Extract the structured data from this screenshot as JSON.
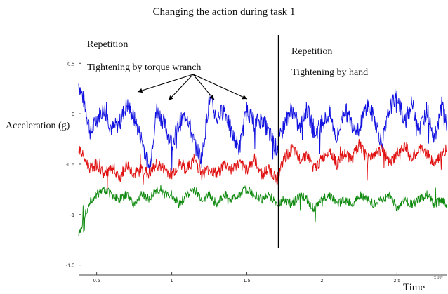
{
  "figure": {
    "title": "Changing the action during task 1",
    "ylabel": "Acceleration (g)",
    "xlabel": "Time",
    "x_exponent": "x 10⁴"
  },
  "annotations": {
    "left_repetition": "Repetition",
    "left_action": "Tightening by torque wranch",
    "right_repetition": "Repetition",
    "right_action": "Tightening by hand"
  },
  "chart_data": {
    "type": "line",
    "title": "Changing the action during task 1",
    "xlabel": "Time",
    "ylabel": "Acceleration (g)",
    "x_scale_note": "x 10^4",
    "xlim": [
      0.38,
      2.83
    ],
    "ylim": [
      -1.6,
      0.85
    ],
    "x_ticks": [
      0.5,
      1,
      1.5,
      2,
      2.5
    ],
    "x_tick_labels": [
      "0.5",
      "1",
      "1.5",
      "2",
      "2.5"
    ],
    "y_ticks": [
      -1.5,
      -1,
      -0.5,
      0,
      0.5
    ],
    "y_tick_labels": [
      "-1.5",
      "-1",
      "-0.5",
      "0",
      "0.5"
    ],
    "change_marker_x": 1.71,
    "colors": {
      "blue": "#1010e0",
      "red": "#e01010",
      "green": "#0f8a0f"
    },
    "series": [
      {
        "color": "blue",
        "x": [
          0.38,
          0.42,
          0.46,
          0.5,
          0.55,
          0.6,
          0.65,
          0.7,
          0.75,
          0.8,
          0.85,
          0.9,
          0.95,
          1.0,
          1.05,
          1.1,
          1.15,
          1.2,
          1.25,
          1.3,
          1.35,
          1.4,
          1.45,
          1.5,
          1.55,
          1.6,
          1.65,
          1.7,
          1.75,
          1.8,
          1.85,
          1.9,
          1.95,
          2.0,
          2.05,
          2.1,
          2.15,
          2.2,
          2.25,
          2.3,
          2.35,
          2.4,
          2.45,
          2.5,
          2.55,
          2.6,
          2.65,
          2.7,
          2.75,
          2.8,
          2.83
        ],
        "values": [
          0.3,
          0.1,
          -0.2,
          -0.05,
          0.05,
          -0.15,
          -0.1,
          0.1,
          -0.05,
          -0.25,
          -0.55,
          0.05,
          -0.1,
          -0.3,
          -0.1,
          0.0,
          -0.3,
          -0.45,
          0.15,
          -0.05,
          0.05,
          -0.2,
          -0.35,
          0.05,
          -0.1,
          -0.05,
          -0.2,
          -0.35,
          -0.1,
          0.05,
          -0.15,
          0.05,
          -0.2,
          -0.1,
          0.0,
          -0.25,
          0.05,
          -0.1,
          -0.15,
          0.1,
          -0.05,
          -0.3,
          0.05,
          0.2,
          -0.1,
          0.1,
          -0.15,
          0.05,
          -0.25,
          0.1,
          -0.1
        ]
      },
      {
        "color": "red",
        "x": [
          0.38,
          0.42,
          0.46,
          0.5,
          0.55,
          0.6,
          0.65,
          0.7,
          0.75,
          0.8,
          0.85,
          0.9,
          0.95,
          1.0,
          1.05,
          1.1,
          1.15,
          1.2,
          1.25,
          1.3,
          1.35,
          1.4,
          1.45,
          1.5,
          1.55,
          1.6,
          1.65,
          1.7,
          1.75,
          1.8,
          1.85,
          1.9,
          1.95,
          2.0,
          2.05,
          2.1,
          2.15,
          2.2,
          2.25,
          2.3,
          2.35,
          2.4,
          2.45,
          2.5,
          2.55,
          2.6,
          2.65,
          2.7,
          2.75,
          2.8,
          2.83
        ],
        "values": [
          -0.35,
          -0.45,
          -0.55,
          -0.5,
          -0.6,
          -0.55,
          -0.65,
          -0.5,
          -0.6,
          -0.55,
          -0.6,
          -0.5,
          -0.55,
          -0.6,
          -0.5,
          -0.55,
          -0.45,
          -0.6,
          -0.55,
          -0.6,
          -0.5,
          -0.55,
          -0.5,
          -0.55,
          -0.45,
          -0.6,
          -0.55,
          -0.65,
          -0.45,
          -0.35,
          -0.45,
          -0.4,
          -0.55,
          -0.45,
          -0.35,
          -0.5,
          -0.4,
          -0.45,
          -0.3,
          -0.45,
          -0.4,
          -0.35,
          -0.5,
          -0.4,
          -0.3,
          -0.45,
          -0.35,
          -0.4,
          -0.5,
          -0.4,
          -0.35
        ]
      },
      {
        "color": "green",
        "x": [
          0.38,
          0.42,
          0.46,
          0.5,
          0.55,
          0.6,
          0.65,
          0.7,
          0.75,
          0.8,
          0.85,
          0.9,
          0.95,
          1.0,
          1.05,
          1.1,
          1.15,
          1.2,
          1.25,
          1.3,
          1.35,
          1.4,
          1.45,
          1.5,
          1.55,
          1.6,
          1.65,
          1.7,
          1.75,
          1.8,
          1.85,
          1.9,
          1.95,
          2.0,
          2.05,
          2.1,
          2.15,
          2.2,
          2.25,
          2.3,
          2.35,
          2.4,
          2.45,
          2.5,
          2.55,
          2.6,
          2.65,
          2.7,
          2.75,
          2.8,
          2.83
        ],
        "values": [
          -1.2,
          -1.0,
          -0.85,
          -0.8,
          -0.75,
          -0.8,
          -0.85,
          -0.8,
          -0.9,
          -0.8,
          -0.85,
          -0.75,
          -0.8,
          -0.8,
          -0.9,
          -0.8,
          -0.75,
          -0.85,
          -0.8,
          -0.9,
          -0.8,
          -0.85,
          -0.8,
          -0.75,
          -0.8,
          -0.85,
          -0.8,
          -0.9,
          -0.85,
          -0.9,
          -0.8,
          -0.85,
          -0.95,
          -0.85,
          -0.8,
          -0.9,
          -0.85,
          -0.9,
          -0.8,
          -0.85,
          -0.9,
          -0.85,
          -0.8,
          -0.95,
          -0.85,
          -0.9,
          -0.85,
          -0.8,
          -0.9,
          -0.85,
          -0.9
        ]
      }
    ]
  }
}
